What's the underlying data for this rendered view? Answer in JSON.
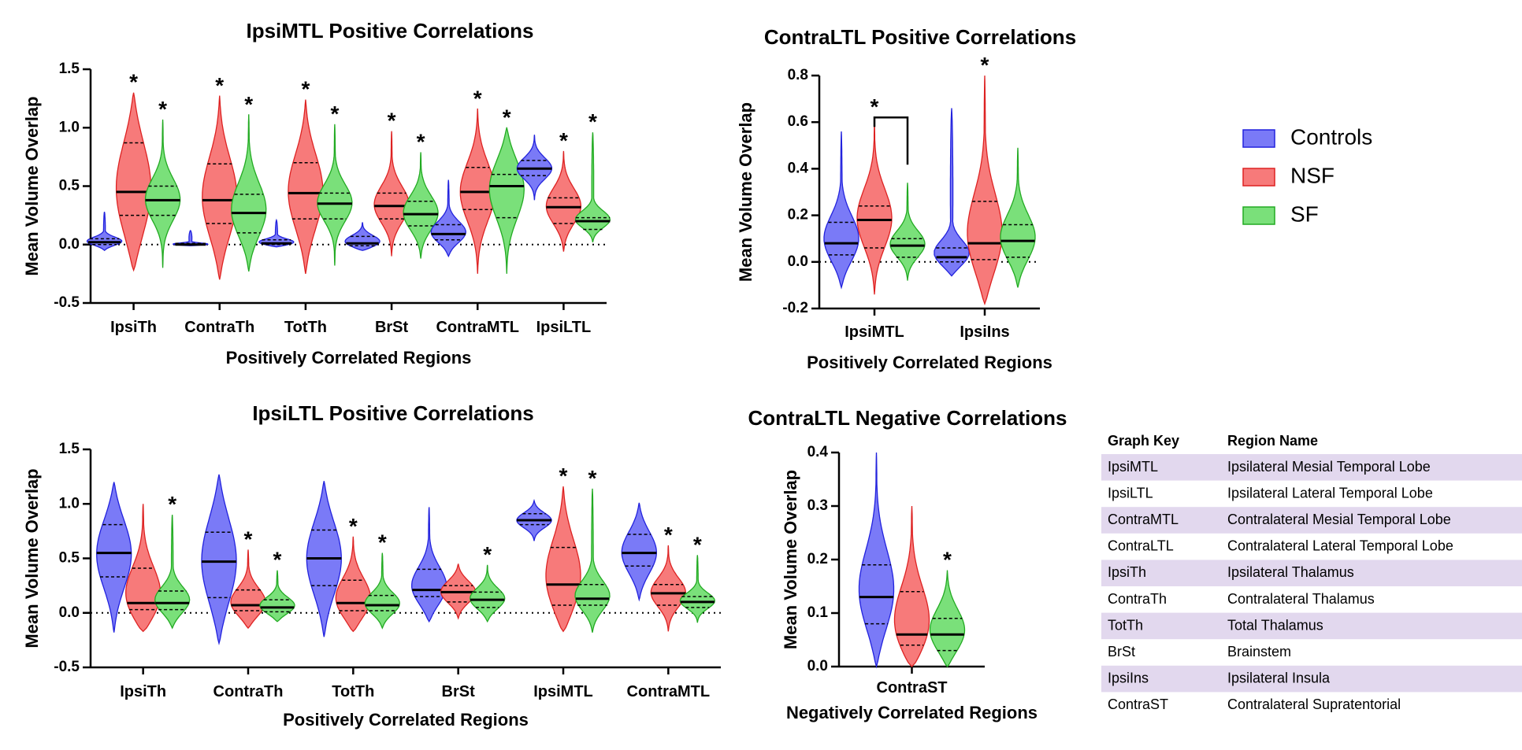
{
  "colors": {
    "Controls": "#7a7af7",
    "NSF": "#f77a7a",
    "SF": "#7ae07a",
    "Controls_stroke": "#2222dd",
    "NSF_stroke": "#dd2222",
    "SF_stroke": "#22aa22",
    "key_band": "#e2d8ee"
  },
  "legend": {
    "entries": [
      "Controls",
      "NSF",
      "SF"
    ]
  },
  "chart_data": [
    {
      "type": "violin",
      "title": "IpsiMTL Positive Correlations",
      "xlabel": "Positively Correlated Regions",
      "ylabel": "Mean Volume Overlap",
      "ylim": [
        -0.5,
        1.5
      ],
      "yticks": [
        -0.5,
        0.0,
        0.5,
        1.0,
        1.5
      ],
      "ytick_labels": [
        "-0.5",
        "0.0",
        "0.5",
        "1.0",
        "1.5"
      ],
      "categories": [
        "IpsiTh",
        "ContraTh",
        "TotTh",
        "BrSt",
        "ContraMTL",
        "IpsiLTL"
      ],
      "series": [
        {
          "name": "Controls",
          "values": [
            {
              "min": -0.05,
              "max": 0.28,
              "q1": 0.0,
              "median": 0.02,
              "q3": 0.05
            },
            {
              "min": -0.01,
              "max": 0.12,
              "q1": 0.0,
              "median": 0.0,
              "q3": 0.01
            },
            {
              "min": -0.02,
              "max": 0.21,
              "q1": 0.0,
              "median": 0.01,
              "q3": 0.04
            },
            {
              "min": -0.05,
              "max": 0.19,
              "q1": -0.01,
              "median": 0.01,
              "q3": 0.07
            },
            {
              "min": -0.1,
              "max": 0.55,
              "q1": 0.04,
              "median": 0.09,
              "q3": 0.17
            },
            {
              "min": 0.38,
              "max": 0.94,
              "q1": 0.59,
              "median": 0.65,
              "q3": 0.72
            }
          ]
        },
        {
          "name": "NSF",
          "values": [
            {
              "min": -0.22,
              "max": 1.3,
              "q1": 0.25,
              "median": 0.45,
              "q3": 0.87
            },
            {
              "min": -0.3,
              "max": 1.27,
              "q1": 0.18,
              "median": 0.38,
              "q3": 0.69
            },
            {
              "min": -0.25,
              "max": 1.24,
              "q1": 0.22,
              "median": 0.44,
              "q3": 0.7
            },
            {
              "min": -0.1,
              "max": 0.97,
              "q1": 0.22,
              "median": 0.33,
              "q3": 0.44
            },
            {
              "min": -0.25,
              "max": 1.16,
              "q1": 0.3,
              "median": 0.45,
              "q3": 0.66
            },
            {
              "min": -0.06,
              "max": 0.8,
              "q1": 0.18,
              "median": 0.32,
              "q3": 0.4
            }
          ]
        },
        {
          "name": "SF",
          "values": [
            {
              "min": -0.2,
              "max": 1.07,
              "q1": 0.25,
              "median": 0.38,
              "q3": 0.5
            },
            {
              "min": -0.23,
              "max": 1.11,
              "q1": 0.1,
              "median": 0.27,
              "q3": 0.43
            },
            {
              "min": -0.18,
              "max": 1.03,
              "q1": 0.22,
              "median": 0.35,
              "q3": 0.44
            },
            {
              "min": -0.12,
              "max": 0.79,
              "q1": 0.16,
              "median": 0.26,
              "q3": 0.37
            },
            {
              "min": -0.25,
              "max": 1.0,
              "q1": 0.23,
              "median": 0.5,
              "q3": 0.6
            },
            {
              "min": 0.02,
              "max": 0.96,
              "q1": 0.13,
              "median": 0.2,
              "q3": 0.23
            }
          ]
        }
      ],
      "annotations": [
        {
          "category": "IpsiTh",
          "series": "NSF",
          "text": "*"
        },
        {
          "category": "IpsiTh",
          "series": "SF",
          "text": "*"
        },
        {
          "category": "ContraTh",
          "series": "NSF",
          "text": "*"
        },
        {
          "category": "ContraTh",
          "series": "SF",
          "text": "*"
        },
        {
          "category": "TotTh",
          "series": "NSF",
          "text": "*"
        },
        {
          "category": "TotTh",
          "series": "SF",
          "text": "*"
        },
        {
          "category": "BrSt",
          "series": "NSF",
          "text": "*"
        },
        {
          "category": "BrSt",
          "series": "SF",
          "text": "*"
        },
        {
          "category": "ContraMTL",
          "series": "NSF",
          "text": "*"
        },
        {
          "category": "ContraMTL",
          "series": "SF",
          "text": "*"
        },
        {
          "category": "IpsiLTL",
          "series": "NSF",
          "text": "*"
        },
        {
          "category": "IpsiLTL",
          "series": "SF",
          "text": "*"
        }
      ]
    },
    {
      "type": "violin",
      "title": "ContraLTL Positive Correlations",
      "xlabel": "Positively Correlated Regions",
      "ylabel": "Mean Volume Overlap",
      "ylim": [
        -0.2,
        0.8
      ],
      "yticks": [
        -0.2,
        0.0,
        0.2,
        0.4,
        0.6,
        0.8
      ],
      "ytick_labels": [
        "-0.2",
        "0.0",
        "0.2",
        "0.4",
        "0.6",
        "0.8"
      ],
      "categories": [
        "IpsiMTL",
        "IpsiIns"
      ],
      "series": [
        {
          "name": "Controls",
          "values": [
            {
              "min": -0.11,
              "max": 0.56,
              "q1": 0.03,
              "median": 0.08,
              "q3": 0.17
            },
            {
              "min": -0.06,
              "max": 0.66,
              "q1": 0.0,
              "median": 0.02,
              "q3": 0.06
            }
          ]
        },
        {
          "name": "NSF",
          "values": [
            {
              "min": -0.14,
              "max": 0.6,
              "q1": 0.06,
              "median": 0.18,
              "q3": 0.24
            },
            {
              "min": -0.18,
              "max": 0.8,
              "q1": 0.01,
              "median": 0.08,
              "q3": 0.26
            }
          ]
        },
        {
          "name": "SF",
          "values": [
            {
              "min": -0.08,
              "max": 0.34,
              "q1": 0.02,
              "median": 0.07,
              "q3": 0.1
            },
            {
              "min": -0.11,
              "max": 0.49,
              "q1": 0.02,
              "median": 0.09,
              "q3": 0.16
            }
          ]
        }
      ],
      "annotations": [
        {
          "category": "IpsiMTL",
          "series": "NSF",
          "text": "*",
          "bracket_to": "SF"
        },
        {
          "category": "IpsiIns",
          "series": "NSF",
          "text": "*"
        }
      ]
    },
    {
      "type": "violin",
      "title": "IpsiLTL Positive Correlations",
      "xlabel": "Positively Correlated Regions",
      "ylabel": "Mean Volume Overlap",
      "ylim": [
        -0.5,
        1.5
      ],
      "yticks": [
        -0.5,
        0.0,
        0.5,
        1.0,
        1.5
      ],
      "ytick_labels": [
        "-0.5",
        "0.0",
        "0.5",
        "1.0",
        "1.5"
      ],
      "categories": [
        "IpsiTh",
        "ContraTh",
        "TotTh",
        "BrSt",
        "IpsiMTL",
        "ContraMTL"
      ],
      "series": [
        {
          "name": "Controls",
          "values": [
            {
              "min": -0.18,
              "max": 1.2,
              "q1": 0.33,
              "median": 0.55,
              "q3": 0.81
            },
            {
              "min": -0.28,
              "max": 1.27,
              "q1": 0.14,
              "median": 0.47,
              "q3": 0.74
            },
            {
              "min": -0.22,
              "max": 1.21,
              "q1": 0.25,
              "median": 0.5,
              "q3": 0.76
            },
            {
              "min": -0.08,
              "max": 0.97,
              "q1": 0.15,
              "median": 0.21,
              "q3": 0.4
            },
            {
              "min": 0.66,
              "max": 1.03,
              "q1": 0.81,
              "median": 0.85,
              "q3": 0.91
            },
            {
              "min": 0.12,
              "max": 1.01,
              "q1": 0.43,
              "median": 0.55,
              "q3": 0.72
            }
          ]
        },
        {
          "name": "NSF",
          "values": [
            {
              "min": -0.17,
              "max": 1.0,
              "q1": 0.03,
              "median": 0.09,
              "q3": 0.41
            },
            {
              "min": -0.14,
              "max": 0.58,
              "q1": 0.02,
              "median": 0.07,
              "q3": 0.21
            },
            {
              "min": -0.17,
              "max": 0.7,
              "q1": 0.02,
              "median": 0.09,
              "q3": 0.3
            },
            {
              "min": -0.05,
              "max": 0.45,
              "q1": 0.1,
              "median": 0.19,
              "q3": 0.25
            },
            {
              "min": -0.17,
              "max": 1.16,
              "q1": 0.07,
              "median": 0.26,
              "q3": 0.6
            },
            {
              "min": -0.17,
              "max": 0.62,
              "q1": 0.07,
              "median": 0.18,
              "q3": 0.26
            }
          ]
        },
        {
          "name": "SF",
          "values": [
            {
              "min": -0.14,
              "max": 0.9,
              "q1": 0.03,
              "median": 0.09,
              "q3": 0.2
            },
            {
              "min": -0.08,
              "max": 0.39,
              "q1": 0.01,
              "median": 0.05,
              "q3": 0.12
            },
            {
              "min": -0.14,
              "max": 0.55,
              "q1": 0.02,
              "median": 0.07,
              "q3": 0.16
            },
            {
              "min": -0.08,
              "max": 0.44,
              "q1": 0.05,
              "median": 0.12,
              "q3": 0.19
            },
            {
              "min": -0.18,
              "max": 1.14,
              "q1": 0.07,
              "median": 0.13,
              "q3": 0.26
            },
            {
              "min": -0.09,
              "max": 0.53,
              "q1": 0.05,
              "median": 0.1,
              "q3": 0.15
            }
          ]
        }
      ],
      "annotations": [
        {
          "category": "IpsiTh",
          "series": "SF",
          "text": "*"
        },
        {
          "category": "ContraTh",
          "series": "NSF",
          "text": "*"
        },
        {
          "category": "ContraTh",
          "series": "SF",
          "text": "*"
        },
        {
          "category": "TotTh",
          "series": "NSF",
          "text": "*"
        },
        {
          "category": "TotTh",
          "series": "SF",
          "text": "*"
        },
        {
          "category": "BrSt",
          "series": "SF",
          "text": "*"
        },
        {
          "category": "IpsiMTL",
          "series": "NSF",
          "text": "*"
        },
        {
          "category": "IpsiMTL",
          "series": "SF",
          "text": "*"
        },
        {
          "category": "ContraMTL",
          "series": "NSF",
          "text": "*"
        },
        {
          "category": "ContraMTL",
          "series": "SF",
          "text": "*"
        }
      ]
    },
    {
      "type": "violin",
      "title": "ContraLTL Negative Correlations",
      "xlabel": "Negatively Correlated Regions",
      "ylabel": "Mean Volume Overlap",
      "ylim": [
        0.0,
        0.4
      ],
      "yticks": [
        0.0,
        0.1,
        0.2,
        0.3,
        0.4
      ],
      "ytick_labels": [
        "0.0",
        "0.1",
        "0.2",
        "0.3",
        "0.4"
      ],
      "categories": [
        "ContraST"
      ],
      "series": [
        {
          "name": "Controls",
          "values": [
            {
              "min": 0.0,
              "max": 0.4,
              "q1": 0.08,
              "median": 0.13,
              "q3": 0.19
            }
          ]
        },
        {
          "name": "NSF",
          "values": [
            {
              "min": 0.0,
              "max": 0.3,
              "q1": 0.04,
              "median": 0.06,
              "q3": 0.14
            }
          ]
        },
        {
          "name": "SF",
          "values": [
            {
              "min": 0.0,
              "max": 0.18,
              "q1": 0.03,
              "median": 0.06,
              "q3": 0.09
            }
          ]
        }
      ],
      "annotations": [
        {
          "category": "ContraST",
          "series": "SF",
          "text": "*"
        }
      ]
    },
    {
      "type": "table",
      "title": "",
      "columns": [
        "Graph Key",
        "Region Name"
      ],
      "rows": [
        [
          "IpsiMTL",
          "Ipsilateral Mesial Temporal Lobe"
        ],
        [
          "IpsiLTL",
          "Ipsilateral Lateral Temporal Lobe"
        ],
        [
          "ContraMTL",
          "Contralateral Mesial Temporal Lobe"
        ],
        [
          "ContraLTL",
          "Contralateral Lateral Temporal Lobe"
        ],
        [
          "IpsiTh",
          "Ipsilateral Thalamus"
        ],
        [
          "ContraTh",
          "Contralateral Thalamus"
        ],
        [
          "TotTh",
          "Total Thalamus"
        ],
        [
          "BrSt",
          "Brainstem"
        ],
        [
          "IpsiIns",
          "Ipsilateral Insula"
        ],
        [
          "ContraST",
          "Contralateral Supratentorial"
        ]
      ]
    }
  ]
}
